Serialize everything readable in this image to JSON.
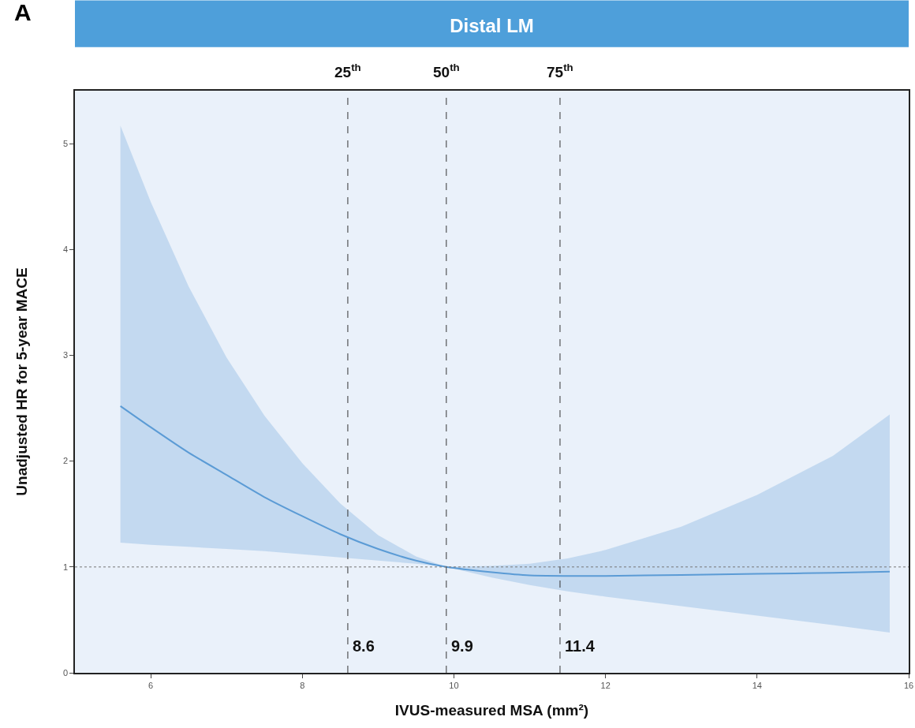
{
  "chart_data": {
    "type": "line",
    "title": "Distal LM",
    "xlabel": "IVUS-measured MSA (mm²)",
    "ylabel": "Unadjusted HR for 5-year MACE",
    "annotations": [
      "A",
      "25$^{th}$",
      "50$^{th}$",
      "75$^{th}$"
    ],
    "x": [
      5.6,
      6,
      6.5,
      7,
      7.5,
      8,
      8.5,
      9,
      9.5,
      9.9,
      10.5,
      11,
      11.5,
      12,
      13,
      14,
      15,
      15.75
    ],
    "series": [
      {
        "color": "#5b9bd5",
        "values": [
          2.52,
          2.32,
          2.08,
          1.87,
          1.66,
          1.48,
          1.31,
          1.17,
          1.06,
          1.0,
          0.95,
          0.92,
          0.915,
          0.915,
          0.925,
          0.935,
          0.945,
          0.955
        ],
        "upper": [
          5.17,
          4.45,
          3.65,
          2.98,
          2.43,
          1.98,
          1.6,
          1.3,
          1.1,
          1.0,
          1.01,
          1.03,
          1.08,
          1.16,
          1.38,
          1.68,
          2.05,
          2.44
        ],
        "lower": [
          1.23,
          1.21,
          1.19,
          1.17,
          1.15,
          1.12,
          1.09,
          1.06,
          1.03,
          1.0,
          0.9,
          0.83,
          0.77,
          0.72,
          0.63,
          0.54,
          0.45,
          0.38
        ]
      }
    ],
    "xlim": [
      5,
      16
    ],
    "xticks": [
      6,
      8,
      10,
      12,
      14,
      16
    ],
    "ylim": [
      0,
      5.5
    ],
    "yticks": [
      0,
      1,
      2,
      3,
      4,
      5
    ],
    "ref_lines": [
      {
        "axis": "x",
        "value": 8.6,
        "label": "8.6",
        "line_style": "dashed",
        "color": "#333333"
      },
      {
        "axis": "x",
        "value": 9.9,
        "label": "9.9",
        "line_style": "dashed",
        "color": "#333333"
      },
      {
        "axis": "x",
        "value": 11.4,
        "label": "11.4",
        "line_style": "dashed",
        "color": "#333333"
      },
      {
        "axis": "y",
        "value": 1,
        "line_style": "dotted",
        "color": "#777777"
      }
    ],
    "grid": false,
    "marker": "none",
    "line_style": "solid"
  }
}
